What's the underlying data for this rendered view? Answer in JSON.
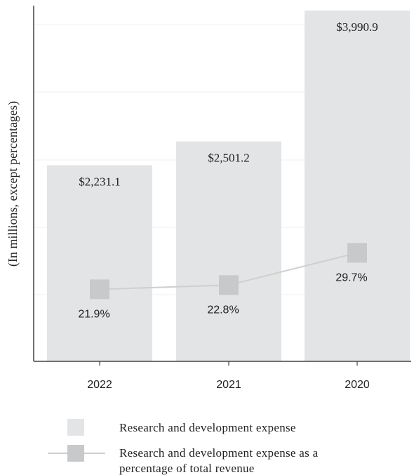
{
  "chart_data": {
    "type": "bar",
    "categories": [
      "2022",
      "2021",
      "2020"
    ],
    "ylabel": "(In millions, except percentages)",
    "grid": true,
    "legend_placement": "bottom",
    "series": [
      {
        "name": "Research and development expense",
        "type": "bar",
        "values": [
          2231.1,
          2501.2,
          3990.9
        ],
        "labels": [
          "$2,231.1",
          "$2,501.2",
          "$3,990.9"
        ],
        "color": "#e3e4e6"
      },
      {
        "name": "Research and development expense as a percentage of total revenue",
        "type": "line",
        "values": [
          21.9,
          22.8,
          29.7
        ],
        "labels": [
          "21.9%",
          "22.8%",
          "29.7%"
        ],
        "color": "#c8c9cb",
        "line_color": "#cfcfcf"
      }
    ],
    "legend": {
      "items": [
        {
          "label_lines": [
            "Research and development expense"
          ]
        },
        {
          "label_lines": [
            "Research and development expense as a",
            "percentage of total revenue"
          ]
        }
      ]
    }
  }
}
